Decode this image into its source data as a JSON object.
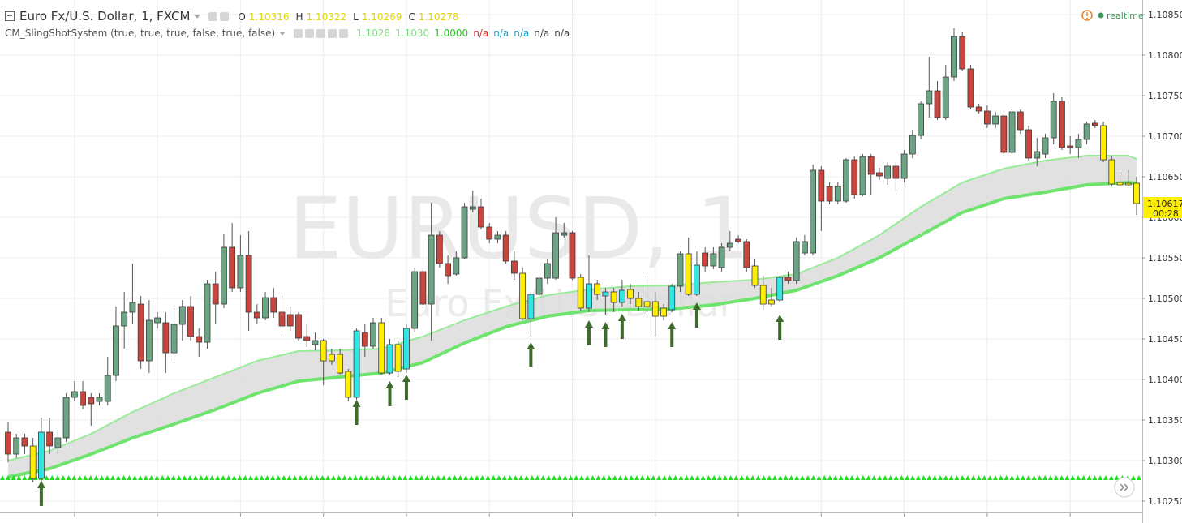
{
  "chart_data": {
    "type": "candlestick",
    "title": "Euro Fx/U.S. Dollar, 1, FXCM",
    "ohlc_legend": {
      "labels": [
        "O",
        "H",
        "L",
        "C"
      ],
      "values": [
        1.10316,
        1.10322,
        1.10269,
        1.10278
      ],
      "color": "#e3d600"
    },
    "indicator": {
      "name": "CM_SlingShotSystem (true, true, true, false, true, false)",
      "values": [
        1.1028,
        1.103,
        1,
        null,
        null,
        null,
        null,
        null
      ],
      "value_labels": [
        "1.1028",
        "1.1030",
        "1.0000",
        "n/a",
        "n/a",
        "n/a",
        "n/a",
        "n/a"
      ],
      "colors": [
        "#7edc7e",
        "#7edc7e",
        "#1fc81f",
        "#d9302c",
        "#1aa3c9",
        "#1aa3c9",
        "#444444",
        "#444444"
      ]
    },
    "watermark": "EURUSD, 1",
    "watermark_subtitle": "Euro Fx/U.S. Dollar",
    "status": "realtime",
    "open": [
      1.10335,
      1.10308,
      1.10328,
      1.10318,
      1.10278,
      1.10335,
      1.10316,
      1.10328,
      1.10378,
      1.10385,
      1.10378,
      1.10373,
      1.10373,
      1.10405,
      1.10466,
      1.10483,
      1.10493,
      1.10423,
      1.1047,
      1.1047,
      1.10433,
      1.10468,
      1.1049,
      1.10453,
      1.10446,
      1.10518,
      1.10493,
      1.10563,
      1.10513,
      1.10553,
      1.10483,
      1.10476,
      1.10501,
      1.10483,
      1.1048,
      1.1048,
      1.10453,
      1.10443,
      1.10448,
      1.10431,
      1.10431,
      1.1041,
      1.10378,
      1.10458,
      1.10441,
      1.1047,
      1.10408,
      1.10443,
      1.10413,
      1.10463,
      1.10533,
      1.10493,
      1.10578,
      1.10543,
      1.1053,
      1.1055,
      1.1061,
      1.10613,
      1.10588,
      1.10573,
      1.10578,
      1.10546,
      1.10531,
      1.10475,
      1.10505,
      1.10525,
      1.10525,
      1.10578,
      1.10581,
      1.10526,
      1.10488,
      1.10518,
      1.10503,
      1.10508,
      1.10495,
      1.10511,
      1.105,
      1.10496,
      1.10496,
      1.10488,
      1.10486,
      1.10515,
      1.10555,
      1.10505,
      1.10556,
      1.1054,
      1.10538,
      1.10563,
      1.10573,
      1.1057,
      1.1054,
      1.10516,
      1.10498,
      1.10498,
      1.10526,
      1.10522,
      1.10556,
      1.10556,
      1.10658,
      1.10638,
      1.1062,
      1.1062,
      1.10671,
      1.10628,
      1.10675,
      1.10655,
      1.10648,
      1.10663,
      1.10648,
      1.10678,
      1.10701,
      1.1074,
      1.10756,
      1.10723,
      1.10773,
      1.10823,
      1.10783,
      1.10736,
      1.10731,
      1.10715,
      1.10725,
      1.1068,
      1.1073,
      1.10708,
      1.10673,
      1.10678,
      1.10698,
      1.10743,
      1.10688,
      1.10686,
      1.10696,
      1.10716,
      1.10713,
      1.10671,
      1.10643,
      1.10642,
      1.10642
    ],
    "high": [
      1.10348,
      1.10333,
      1.10333,
      1.10328,
      1.10353,
      1.10353,
      1.10338,
      1.10383,
      1.10398,
      1.10398,
      1.10383,
      1.10383,
      1.10428,
      1.1049,
      1.10508,
      1.10543,
      1.10503,
      1.10498,
      1.10483,
      1.10483,
      1.10488,
      1.10498,
      1.10503,
      1.10463,
      1.10523,
      1.10533,
      1.1058,
      1.10593,
      1.10578,
      1.10583,
      1.10493,
      1.10508,
      1.10513,
      1.10503,
      1.1049,
      1.10483,
      1.10468,
      1.10458,
      1.1045,
      1.10438,
      1.10438,
      1.10413,
      1.10463,
      1.10468,
      1.10476,
      1.10476,
      1.1045,
      1.10448,
      1.10468,
      1.10538,
      1.10538,
      1.10618,
      1.10583,
      1.10553,
      1.10558,
      1.10618,
      1.10633,
      1.10623,
      1.10593,
      1.10583,
      1.10583,
      1.10558,
      1.10538,
      1.10508,
      1.10528,
      1.10548,
      1.106,
      1.10593,
      1.10583,
      1.1053,
      1.10553,
      1.10523,
      1.10513,
      1.10513,
      1.10523,
      1.10518,
      1.10508,
      1.10528,
      1.10508,
      1.10493,
      1.10518,
      1.10558,
      1.10575,
      1.10558,
      1.10563,
      1.10563,
      1.10568,
      1.10583,
      1.10578,
      1.10573,
      1.10548,
      1.10528,
      1.10513,
      1.10528,
      1.10533,
      1.10575,
      1.10578,
      1.10665,
      1.10663,
      1.10643,
      1.10643,
      1.10673,
      1.10675,
      1.10678,
      1.10678,
      1.10661,
      1.10668,
      1.10668,
      1.10683,
      1.10708,
      1.10743,
      1.10798,
      1.10768,
      1.10788,
      1.10833,
      1.10828,
      1.10788,
      1.1074,
      1.10738,
      1.1073,
      1.10728,
      1.10733,
      1.10733,
      1.10713,
      1.10698,
      1.10703,
      1.10753,
      1.10748,
      1.107,
      1.10703,
      1.10718,
      1.1072,
      1.10718,
      1.10676,
      1.10656,
      1.10658,
      1.1065
    ],
    "low": [
      1.10298,
      1.10303,
      1.10308,
      1.10273,
      1.10273,
      1.10308,
      1.10308,
      1.10323,
      1.10373,
      1.10363,
      1.10343,
      1.10368,
      1.10368,
      1.10398,
      1.10438,
      1.10468,
      1.10413,
      1.10408,
      1.10463,
      1.10408,
      1.10423,
      1.10448,
      1.10448,
      1.10428,
      1.10438,
      1.10468,
      1.10488,
      1.10508,
      1.10508,
      1.1046,
      1.10468,
      1.10473,
      1.10476,
      1.10458,
      1.1046,
      1.10448,
      1.1044,
      1.10436,
      1.10393,
      1.10418,
      1.10406,
      1.10373,
      1.10375,
      1.10428,
      1.10438,
      1.10406,
      1.10406,
      1.10403,
      1.10408,
      1.10458,
      1.10488,
      1.10448,
      1.10538,
      1.10518,
      1.10528,
      1.10548,
      1.10606,
      1.10585,
      1.10568,
      1.10568,
      1.10543,
      1.10523,
      1.10473,
      1.10453,
      1.10503,
      1.10518,
      1.10523,
      1.10575,
      1.10523,
      1.10485,
      1.10483,
      1.10498,
      1.1048,
      1.10483,
      1.1049,
      1.10493,
      1.10485,
      1.10483,
      1.10453,
      1.10473,
      1.10483,
      1.10508,
      1.10503,
      1.10503,
      1.10533,
      1.10536,
      1.10533,
      1.10558,
      1.10568,
      1.10533,
      1.10513,
      1.10486,
      1.1049,
      1.10496,
      1.10518,
      1.10518,
      1.10553,
      1.10553,
      1.10583,
      1.10616,
      1.10616,
      1.10618,
      1.10623,
      1.10626,
      1.10628,
      1.10646,
      1.1064,
      1.10633,
      1.10643,
      1.10673,
      1.10696,
      1.10723,
      1.1072,
      1.1072,
      1.10768,
      1.1078,
      1.10733,
      1.10728,
      1.1071,
      1.1071,
      1.10678,
      1.10678,
      1.10703,
      1.1067,
      1.10663,
      1.10673,
      1.1069,
      1.10683,
      1.10678,
      1.10673,
      1.1069,
      1.1071,
      1.10668,
      1.10638,
      1.10638,
      1.10638,
      1.10603
    ],
    "close": [
      1.10308,
      1.10328,
      1.10318,
      1.10278,
      1.10335,
      1.10318,
      1.10328,
      1.10378,
      1.10385,
      1.10368,
      1.1037,
      1.10378,
      1.10405,
      1.10466,
      1.10483,
      1.10495,
      1.10423,
      1.10473,
      1.10476,
      1.10433,
      1.10468,
      1.1049,
      1.10453,
      1.10446,
      1.10518,
      1.10493,
      1.10563,
      1.10513,
      1.10553,
      1.10483,
      1.10476,
      1.10501,
      1.10483,
      1.10466,
      1.10466,
      1.10451,
      1.10448,
      1.10448,
      1.10423,
      1.10423,
      1.10408,
      1.10378,
      1.1046,
      1.10441,
      1.1047,
      1.10408,
      1.10443,
      1.1041,
      1.10463,
      1.10533,
      1.10493,
      1.10578,
      1.10543,
      1.10528,
      1.1055,
      1.10613,
      1.10613,
      1.10588,
      1.10573,
      1.10578,
      1.10546,
      1.10531,
      1.10475,
      1.10505,
      1.10525,
      1.10543,
      1.10581,
      1.10581,
      1.10525,
      1.10488,
      1.10518,
      1.10505,
      1.10508,
      1.10495,
      1.1051,
      1.105,
      1.1049,
      1.1049,
      1.10478,
      1.10478,
      1.10515,
      1.10555,
      1.10505,
      1.10541,
      1.1054,
      1.10555,
      1.10563,
      1.10568,
      1.1057,
      1.10538,
      1.10516,
      1.10493,
      1.10493,
      1.10526,
      1.10522,
      1.1057,
      1.1057,
      1.10658,
      1.1062,
      1.1062,
      1.10638,
      1.10671,
      1.10628,
      1.10675,
      1.10653,
      1.10651,
      1.10663,
      1.10648,
      1.10678,
      1.10701,
      1.1074,
      1.10756,
      1.10723,
      1.10773,
      1.10823,
      1.10783,
      1.10736,
      1.10731,
      1.10715,
      1.10725,
      1.1068,
      1.1073,
      1.10708,
      1.10673,
      1.10681,
      1.10698,
      1.10743,
      1.10686,
      1.10686,
      1.10696,
      1.10715,
      1.10713,
      1.10671,
      1.10641,
      1.1064,
      1.1064,
      1.10617
    ],
    "colors": {
      "up": "#6ba583",
      "down": "#c8463d",
      "yellow": "#ffee00",
      "cyan": "#33e6e6"
    },
    "yellow_bars": [
      3,
      38,
      39,
      40,
      41,
      45,
      47,
      62,
      69,
      71,
      73,
      75,
      76,
      77,
      78,
      79,
      82,
      90,
      91,
      92,
      132,
      133,
      134,
      135,
      136
    ],
    "cyan_bars": [
      4,
      42,
      46,
      48,
      63,
      70,
      72,
      74,
      80,
      83,
      93
    ],
    "bands": [
      {
        "x": [
          0,
          5,
          10,
          15,
          20,
          25,
          30,
          35,
          40,
          45,
          50,
          55,
          60,
          65,
          70,
          75,
          80,
          85,
          90,
          95,
          100,
          105,
          110,
          115,
          120,
          125,
          130,
          135,
          136
        ],
        "values": [
          1.103,
          1.10312,
          1.10333,
          1.1036,
          1.10383,
          1.10403,
          1.10423,
          1.10435,
          1.10436,
          1.10438,
          1.10453,
          1.10473,
          1.1049,
          1.10504,
          1.10511,
          1.10515,
          1.10516,
          1.1052,
          1.10523,
          1.1053,
          1.1055,
          1.10578,
          1.10613,
          1.10643,
          1.1066,
          1.1067,
          1.10676,
          1.10676,
          1.10672
        ],
        "color": "#98ec98"
      },
      {
        "x": [
          0,
          5,
          10,
          15,
          20,
          25,
          30,
          35,
          40,
          45,
          50,
          55,
          60,
          65,
          70,
          75,
          80,
          85,
          90,
          95,
          100,
          105,
          110,
          115,
          120,
          125,
          130,
          135,
          136
        ],
        "values": [
          1.1028,
          1.1029,
          1.10308,
          1.10328,
          1.10345,
          1.10363,
          1.10383,
          1.10398,
          1.10403,
          1.10408,
          1.10421,
          1.10445,
          1.10465,
          1.10478,
          1.10485,
          1.10486,
          1.10487,
          1.10492,
          1.105,
          1.1051,
          1.10528,
          1.1055,
          1.10578,
          1.10606,
          1.10623,
          1.10631,
          1.1064,
          1.10643,
          1.10642
        ],
        "color": "#6ee46e"
      }
    ],
    "band_fill": "#dcdcdc",
    "signals": {
      "x": [
        4,
        42,
        46,
        48,
        63,
        70,
        72,
        74,
        80,
        83,
        93
      ],
      "values": [
        1.10275,
        1.10375,
        1.10398,
        1.10406,
        1.10446,
        1.10473,
        1.10471,
        1.10481,
        1.10471,
        1.10495,
        1.1048
      ],
      "color": "#3d6b2c"
    },
    "stop_level": {
      "value": 1.10279,
      "color": "#22dd22"
    },
    "last_price": {
      "value": 1.10617,
      "countdown": "00:28",
      "color": "#ffee00"
    },
    "ylim": [
      1.10236,
      1.10868
    ],
    "yticks": [
      {
        "value": 1.1085,
        "label": "1.10850"
      },
      {
        "value": 1.108,
        "label": "1.10800"
      },
      {
        "value": 1.1075,
        "label": "1.10750"
      },
      {
        "value": 1.107,
        "label": "1.10700"
      },
      {
        "value": 1.1065,
        "label": "1.10650"
      },
      {
        "value": 1.106,
        "label": "1.10600"
      },
      {
        "value": 1.1055,
        "label": "1.10550"
      },
      {
        "value": 1.105,
        "label": "1.10500"
      },
      {
        "value": 1.1045,
        "label": "1.10450"
      },
      {
        "value": 1.104,
        "label": "1.10400"
      },
      {
        "value": 1.1035,
        "label": "1.10350"
      },
      {
        "value": 1.103,
        "label": "1.10300"
      },
      {
        "value": 1.1025,
        "label": "1.10250"
      }
    ],
    "grid": true
  }
}
